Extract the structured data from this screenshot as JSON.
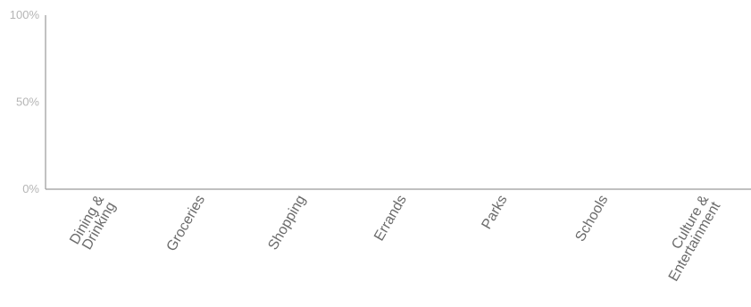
{
  "chart_data": {
    "type": "bar",
    "title": "",
    "xlabel": "",
    "ylabel": "",
    "categories": [
      [
        "Dining &",
        "Drinking"
      ],
      [
        "Groceries"
      ],
      [
        "Shopping"
      ],
      [
        "Errands"
      ],
      [
        "Parks"
      ],
      [
        "Schools"
      ],
      [
        "Culture &",
        "Entertainment"
      ]
    ],
    "values": [
      0,
      0,
      0,
      0,
      0,
      0,
      0
    ],
    "ylim": [
      0,
      100
    ],
    "y_unit": "%",
    "y_ticks": [
      {
        "value": 0,
        "label": "0%"
      },
      {
        "value": 50,
        "label": "50%"
      },
      {
        "value": 100,
        "label": "100%"
      }
    ],
    "grid": false,
    "axis_color": "#9a9a9a",
    "tick_label_color": "#6b6b6b",
    "y_tick_label_color": "#b5b5b5"
  }
}
